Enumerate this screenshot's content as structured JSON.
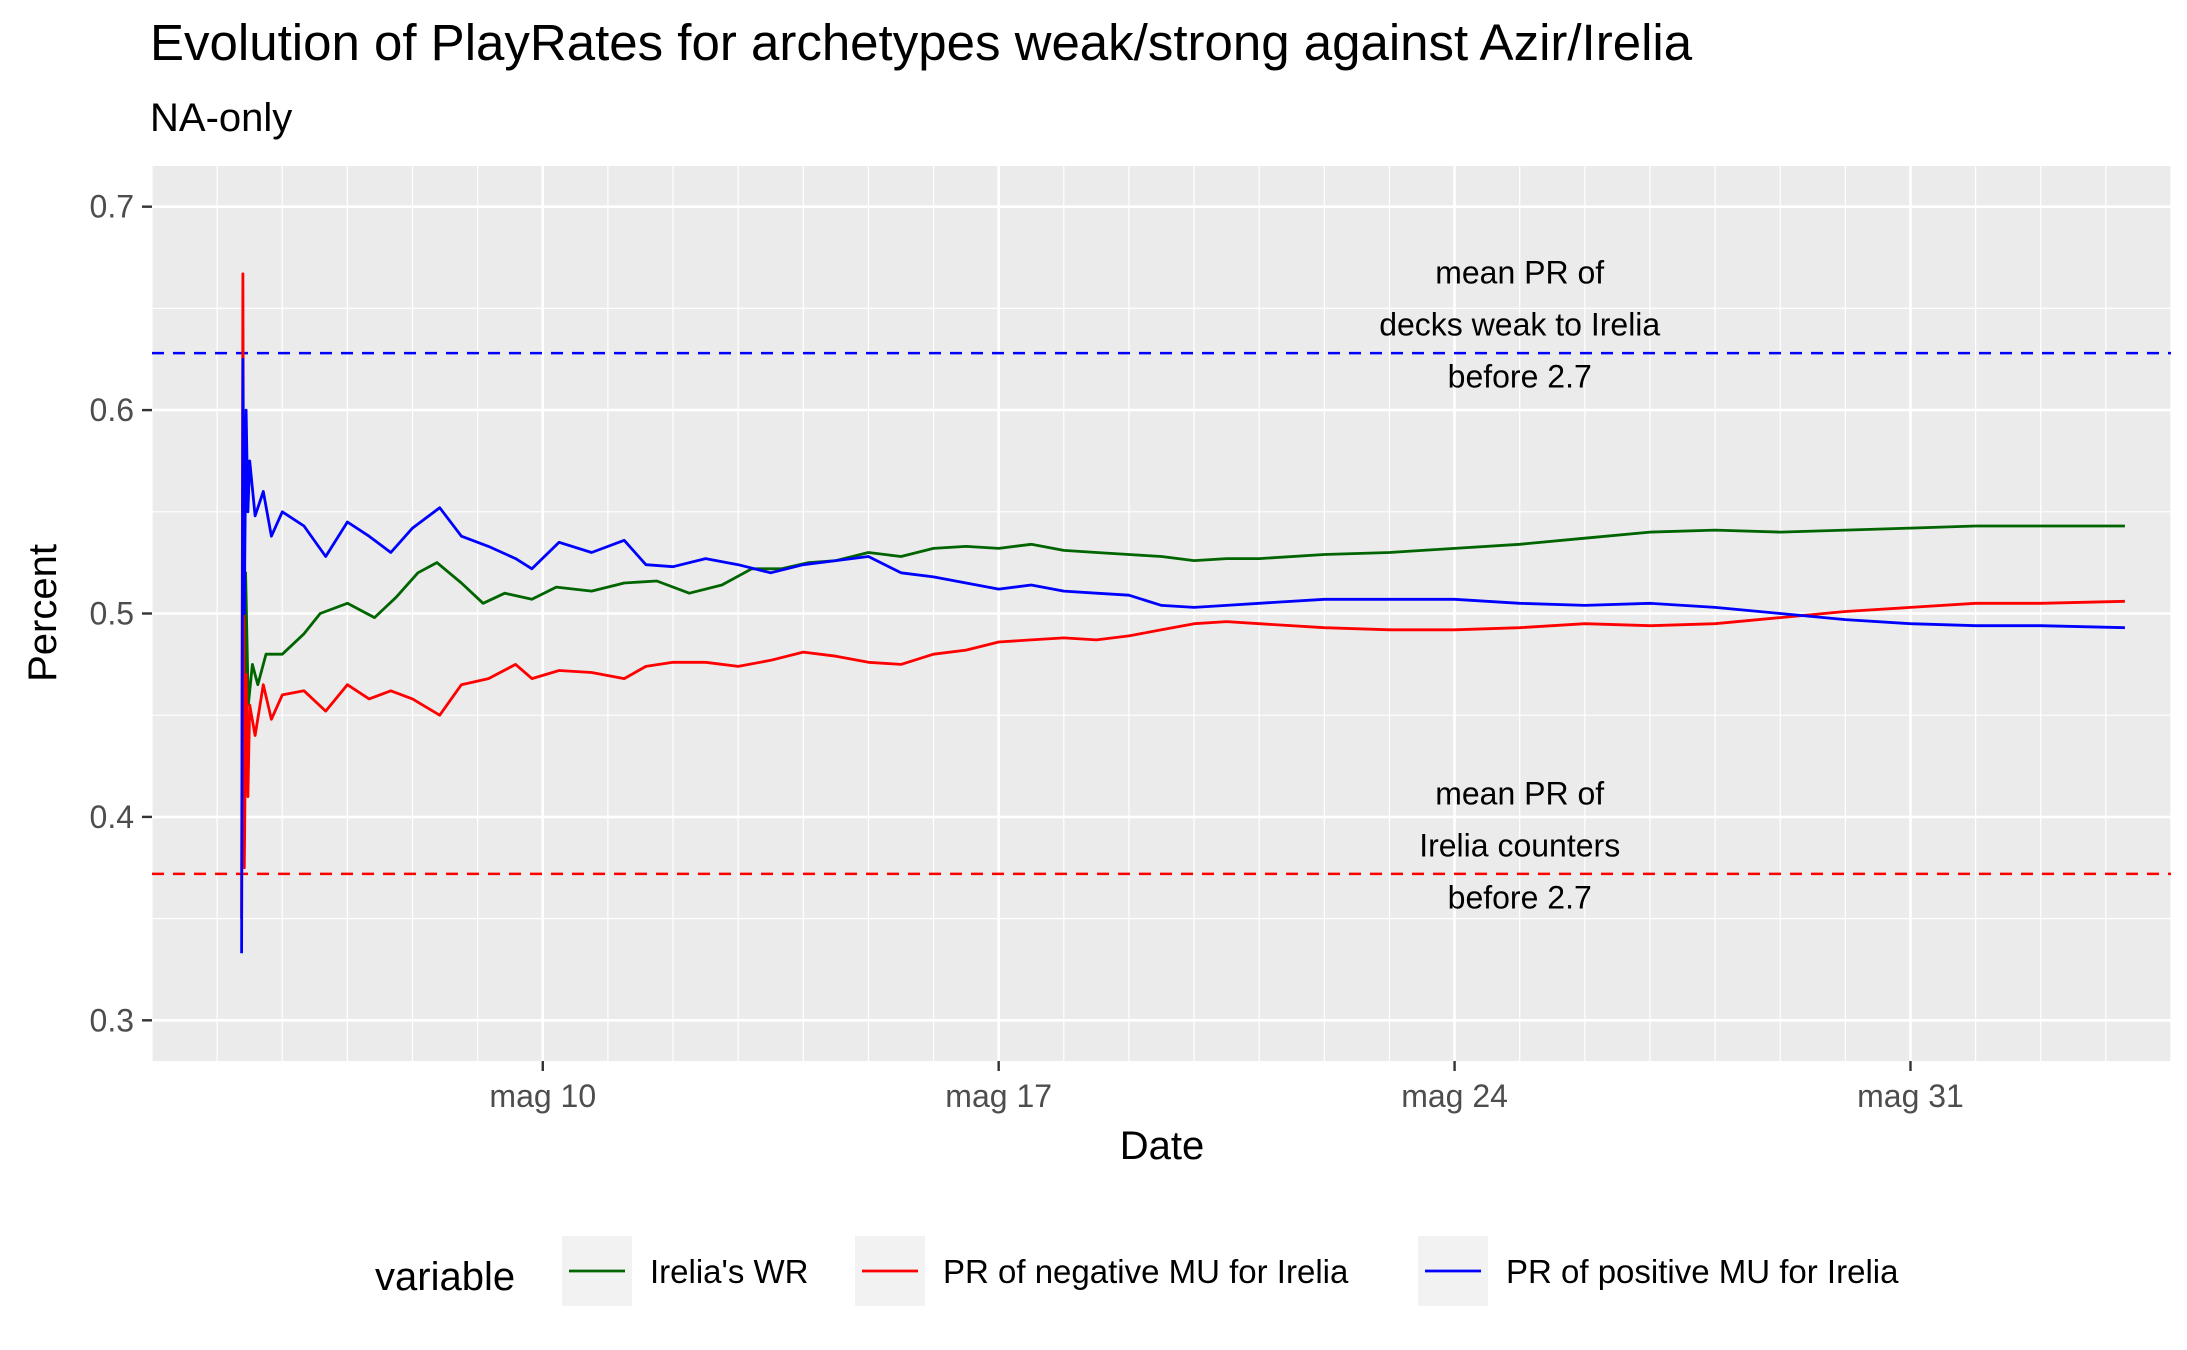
{
  "chart_data": {
    "type": "line",
    "title": "Evolution of PlayRates for archetypes weak/strong against Azir/Irelia",
    "subtitle": "NA-only",
    "xlabel": "Date",
    "ylabel": "Percent",
    "x_type": "date",
    "xlim": [
      "2021-05-04",
      "2021-06-04"
    ],
    "ylim": [
      0.28,
      0.72
    ],
    "x_ticks": [
      {
        "date": "2021-05-10",
        "label": "mag 10"
      },
      {
        "date": "2021-05-17",
        "label": "mag 17"
      },
      {
        "date": "2021-05-24",
        "label": "mag 24"
      },
      {
        "date": "2021-05-31",
        "label": "mag 31"
      }
    ],
    "y_ticks": [
      0.3,
      0.4,
      0.5,
      0.6,
      0.7
    ],
    "y_tick_labels": [
      "0.3",
      "0.4",
      "0.5",
      "0.6",
      "0.7"
    ],
    "grid": true,
    "legend": {
      "title": "variable",
      "position": "bottom"
    },
    "series": [
      {
        "name": "Irelia's WR",
        "color": "#006400",
        "points": [
          [
            "2021-05-05 10:00",
            0.43
          ],
          [
            "2021-05-05 10:30",
            0.52
          ],
          [
            "2021-05-05 11:30",
            0.455
          ],
          [
            "2021-05-05 13:00",
            0.475
          ],
          [
            "2021-05-05 15:00",
            0.465
          ],
          [
            "2021-05-05 18:00",
            0.48
          ],
          [
            "2021-05-06 00:00",
            0.48
          ],
          [
            "2021-05-06 08:00",
            0.49
          ],
          [
            "2021-05-06 14:00",
            0.5
          ],
          [
            "2021-05-07 00:00",
            0.505
          ],
          [
            "2021-05-07 10:00",
            0.498
          ],
          [
            "2021-05-07 18:00",
            0.508
          ],
          [
            "2021-05-08 02:00",
            0.52
          ],
          [
            "2021-05-08 09:00",
            0.525
          ],
          [
            "2021-05-08 18:00",
            0.515
          ],
          [
            "2021-05-09 02:00",
            0.505
          ],
          [
            "2021-05-09 10:00",
            0.51
          ],
          [
            "2021-05-09 20:00",
            0.507
          ],
          [
            "2021-05-10 05:00",
            0.513
          ],
          [
            "2021-05-10 18:00",
            0.511
          ],
          [
            "2021-05-11 06:00",
            0.515
          ],
          [
            "2021-05-11 18:00",
            0.516
          ],
          [
            "2021-05-12 06:00",
            0.51
          ],
          [
            "2021-05-12 18:00",
            0.514
          ],
          [
            "2021-05-13 05:00",
            0.522
          ],
          [
            "2021-05-13 16:00",
            0.522
          ],
          [
            "2021-05-14 02:00",
            0.525
          ],
          [
            "2021-05-14 12:00",
            0.526
          ],
          [
            "2021-05-15 00:00",
            0.53
          ],
          [
            "2021-05-15 12:00",
            0.528
          ],
          [
            "2021-05-16 00:00",
            0.532
          ],
          [
            "2021-05-16 12:00",
            0.533
          ],
          [
            "2021-05-17 00:00",
            0.532
          ],
          [
            "2021-05-17 12:00",
            0.534
          ],
          [
            "2021-05-18 00:00",
            0.531
          ],
          [
            "2021-05-18 12:00",
            0.53
          ],
          [
            "2021-05-19 00:00",
            0.529
          ],
          [
            "2021-05-19 12:00",
            0.528
          ],
          [
            "2021-05-20 00:00",
            0.526
          ],
          [
            "2021-05-20 12:00",
            0.527
          ],
          [
            "2021-05-21 00:00",
            0.527
          ],
          [
            "2021-05-22 00:00",
            0.529
          ],
          [
            "2021-05-23 00:00",
            0.53
          ],
          [
            "2021-05-24 00:00",
            0.532
          ],
          [
            "2021-05-25 00:00",
            0.534
          ],
          [
            "2021-05-26 00:00",
            0.537
          ],
          [
            "2021-05-27 00:00",
            0.54
          ],
          [
            "2021-05-28 00:00",
            0.541
          ],
          [
            "2021-05-29 00:00",
            0.54
          ],
          [
            "2021-05-30 00:00",
            0.541
          ],
          [
            "2021-05-31 00:00",
            0.542
          ],
          [
            "2021-06-01 00:00",
            0.543
          ],
          [
            "2021-06-02 00:00",
            0.543
          ],
          [
            "2021-06-03 07:00",
            0.543
          ]
        ]
      },
      {
        "name": "PR of negative MU for Irelia",
        "color": "#ff0000",
        "points": [
          [
            "2021-05-05 09:00",
            0.35
          ],
          [
            "2021-05-05 09:30",
            0.667
          ],
          [
            "2021-05-05 10:00",
            0.375
          ],
          [
            "2021-05-05 10:40",
            0.47
          ],
          [
            "2021-05-05 11:20",
            0.41
          ],
          [
            "2021-05-05 12:00",
            0.455
          ],
          [
            "2021-05-05 14:00",
            0.44
          ],
          [
            "2021-05-05 17:00",
            0.465
          ],
          [
            "2021-05-05 20:00",
            0.448
          ],
          [
            "2021-05-06 00:00",
            0.46
          ],
          [
            "2021-05-06 08:00",
            0.462
          ],
          [
            "2021-05-06 16:00",
            0.452
          ],
          [
            "2021-05-07 00:00",
            0.465
          ],
          [
            "2021-05-07 08:00",
            0.458
          ],
          [
            "2021-05-07 16:00",
            0.462
          ],
          [
            "2021-05-08 00:00",
            0.458
          ],
          [
            "2021-05-08 10:00",
            0.45
          ],
          [
            "2021-05-08 18:00",
            0.465
          ],
          [
            "2021-05-09 04:00",
            0.468
          ],
          [
            "2021-05-09 14:00",
            0.475
          ],
          [
            "2021-05-09 20:00",
            0.468
          ],
          [
            "2021-05-10 06:00",
            0.472
          ],
          [
            "2021-05-10 18:00",
            0.471
          ],
          [
            "2021-05-11 06:00",
            0.468
          ],
          [
            "2021-05-11 14:00",
            0.474
          ],
          [
            "2021-05-12 00:00",
            0.476
          ],
          [
            "2021-05-12 12:00",
            0.476
          ],
          [
            "2021-05-13 00:00",
            0.474
          ],
          [
            "2021-05-13 12:00",
            0.477
          ],
          [
            "2021-05-14 00:00",
            0.481
          ],
          [
            "2021-05-14 12:00",
            0.479
          ],
          [
            "2021-05-15 00:00",
            0.476
          ],
          [
            "2021-05-15 12:00",
            0.475
          ],
          [
            "2021-05-16 00:00",
            0.48
          ],
          [
            "2021-05-16 12:00",
            0.482
          ],
          [
            "2021-05-17 00:00",
            0.486
          ],
          [
            "2021-05-17 12:00",
            0.487
          ],
          [
            "2021-05-18 00:00",
            0.488
          ],
          [
            "2021-05-18 12:00",
            0.487
          ],
          [
            "2021-05-19 00:00",
            0.489
          ],
          [
            "2021-05-19 12:00",
            0.492
          ],
          [
            "2021-05-20 00:00",
            0.495
          ],
          [
            "2021-05-20 12:00",
            0.496
          ],
          [
            "2021-05-21 00:00",
            0.495
          ],
          [
            "2021-05-22 00:00",
            0.493
          ],
          [
            "2021-05-23 00:00",
            0.492
          ],
          [
            "2021-05-24 00:00",
            0.492
          ],
          [
            "2021-05-25 00:00",
            0.493
          ],
          [
            "2021-05-26 00:00",
            0.495
          ],
          [
            "2021-05-27 00:00",
            0.494
          ],
          [
            "2021-05-28 00:00",
            0.495
          ],
          [
            "2021-05-29 00:00",
            0.498
          ],
          [
            "2021-05-30 00:00",
            0.501
          ],
          [
            "2021-05-31 00:00",
            0.503
          ],
          [
            "2021-06-01 00:00",
            0.505
          ],
          [
            "2021-06-02 00:00",
            0.505
          ],
          [
            "2021-06-03 07:00",
            0.506
          ]
        ]
      },
      {
        "name": "PR of positive MU for Irelia",
        "color": "#0000ff",
        "points": [
          [
            "2021-05-05 09:00",
            0.333
          ],
          [
            "2021-05-05 09:30",
            0.625
          ],
          [
            "2021-05-05 10:00",
            0.5
          ],
          [
            "2021-05-05 10:40",
            0.6
          ],
          [
            "2021-05-05 11:20",
            0.55
          ],
          [
            "2021-05-05 12:00",
            0.575
          ],
          [
            "2021-05-05 14:00",
            0.548
          ],
          [
            "2021-05-05 17:00",
            0.56
          ],
          [
            "2021-05-05 20:00",
            0.538
          ],
          [
            "2021-05-06 00:00",
            0.55
          ],
          [
            "2021-05-06 08:00",
            0.543
          ],
          [
            "2021-05-06 16:00",
            0.528
          ],
          [
            "2021-05-07 00:00",
            0.545
          ],
          [
            "2021-05-07 08:00",
            0.538
          ],
          [
            "2021-05-07 16:00",
            0.53
          ],
          [
            "2021-05-08 00:00",
            0.542
          ],
          [
            "2021-05-08 10:00",
            0.552
          ],
          [
            "2021-05-08 18:00",
            0.538
          ],
          [
            "2021-05-09 04:00",
            0.533
          ],
          [
            "2021-05-09 14:00",
            0.527
          ],
          [
            "2021-05-09 20:00",
            0.522
          ],
          [
            "2021-05-10 06:00",
            0.535
          ],
          [
            "2021-05-10 18:00",
            0.53
          ],
          [
            "2021-05-11 06:00",
            0.536
          ],
          [
            "2021-05-11 14:00",
            0.524
          ],
          [
            "2021-05-12 00:00",
            0.523
          ],
          [
            "2021-05-12 12:00",
            0.527
          ],
          [
            "2021-05-13 00:00",
            0.524
          ],
          [
            "2021-05-13 12:00",
            0.52
          ],
          [
            "2021-05-14 00:00",
            0.524
          ],
          [
            "2021-05-14 12:00",
            0.526
          ],
          [
            "2021-05-15 00:00",
            0.528
          ],
          [
            "2021-05-15 12:00",
            0.52
          ],
          [
            "2021-05-16 00:00",
            0.518
          ],
          [
            "2021-05-16 12:00",
            0.515
          ],
          [
            "2021-05-17 00:00",
            0.512
          ],
          [
            "2021-05-17 12:00",
            0.514
          ],
          [
            "2021-05-18 00:00",
            0.511
          ],
          [
            "2021-05-18 12:00",
            0.51
          ],
          [
            "2021-05-19 00:00",
            0.509
          ],
          [
            "2021-05-19 12:00",
            0.504
          ],
          [
            "2021-05-20 00:00",
            0.503
          ],
          [
            "2021-05-20 12:00",
            0.504
          ],
          [
            "2021-05-21 00:00",
            0.505
          ],
          [
            "2021-05-22 00:00",
            0.507
          ],
          [
            "2021-05-23 00:00",
            0.507
          ],
          [
            "2021-05-24 00:00",
            0.507
          ],
          [
            "2021-05-25 00:00",
            0.505
          ],
          [
            "2021-05-26 00:00",
            0.504
          ],
          [
            "2021-05-27 00:00",
            0.505
          ],
          [
            "2021-05-28 00:00",
            0.503
          ],
          [
            "2021-05-29 00:00",
            0.5
          ],
          [
            "2021-05-30 00:00",
            0.497
          ],
          [
            "2021-05-31 00:00",
            0.495
          ],
          [
            "2021-06-01 00:00",
            0.494
          ],
          [
            "2021-06-02 00:00",
            0.494
          ],
          [
            "2021-06-03 07:00",
            0.493
          ]
        ]
      }
    ],
    "reference_lines": [
      {
        "y": 0.628,
        "color": "#0000ff",
        "style": "dashed",
        "label": [
          "mean PR of",
          "decks weak to Irelia",
          "before 2.7"
        ],
        "label_x": "2021-05-25",
        "label_y": 0.642
      },
      {
        "y": 0.372,
        "color": "#ff0000",
        "style": "dashed",
        "label": [
          "mean PR of",
          "Irelia counters",
          "before 2.7"
        ],
        "label_x": "2021-05-25",
        "label_y": 0.386
      }
    ]
  }
}
